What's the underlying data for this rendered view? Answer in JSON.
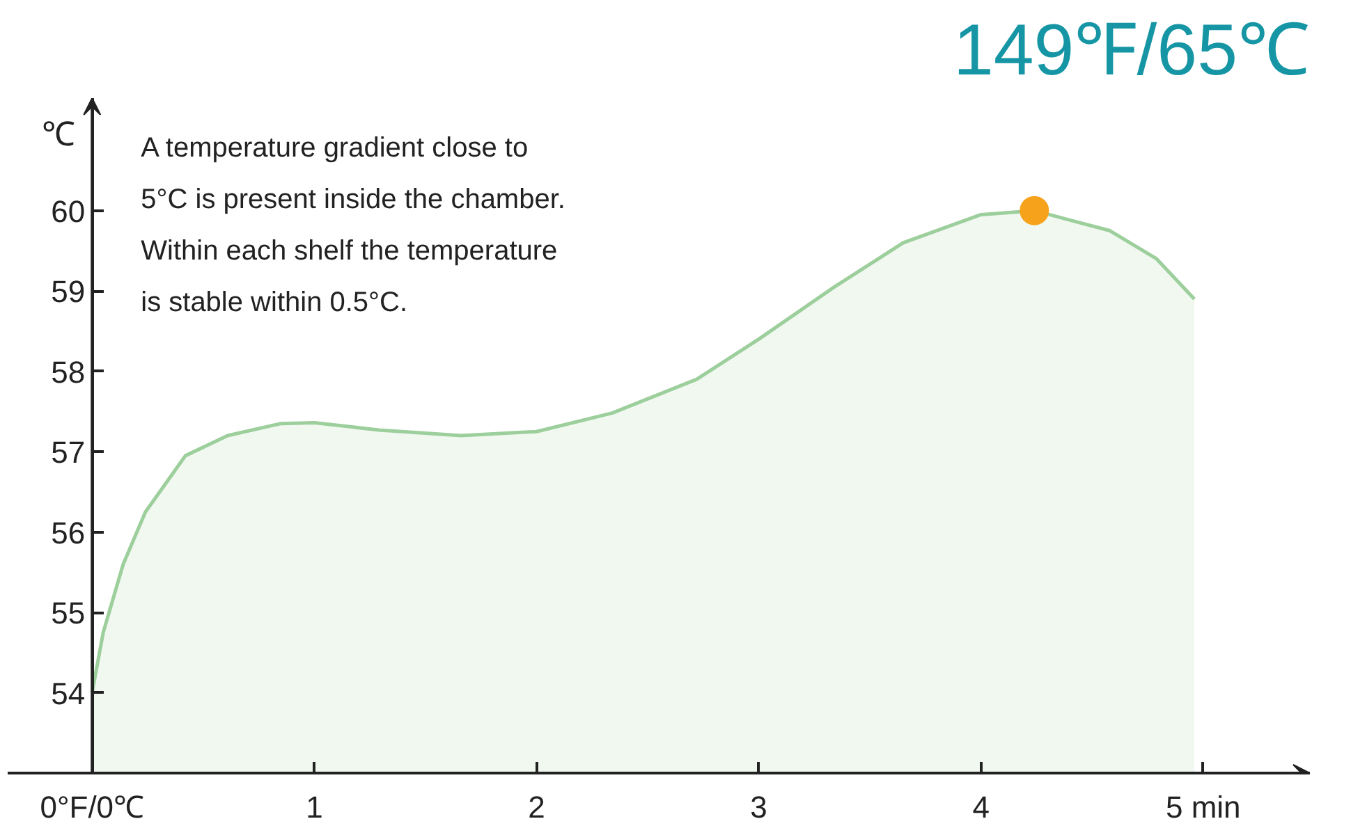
{
  "chart_data": {
    "type": "area",
    "title": "149℉/65℃",
    "ylabel": "℃",
    "annotations": [
      "A temperature gradient close to\n5°C is present inside the chamber.\nWithin each shelf the temperature\nis stable within 0.5°C."
    ],
    "xlim": [
      -0.38,
      5.48
    ],
    "ylim": [
      53.0,
      61.4
    ],
    "xticks": [
      {
        "value": 0,
        "label": "0°F/0℃"
      },
      1,
      2,
      3,
      4,
      {
        "value": 5,
        "label": "5 min"
      }
    ],
    "yticks": [
      54,
      55,
      56,
      57,
      58,
      59,
      60
    ],
    "grid": false,
    "series": [
      {
        "color": "#9ccf9c",
        "x": [
          0,
          0.05,
          0.14,
          0.24,
          0.42,
          0.61,
          0.85,
          1.0,
          1.29,
          1.66,
          2.0,
          2.34,
          2.72,
          3.0,
          3.34,
          3.65,
          4.0,
          4.24,
          4.58,
          4.79,
          4.96
        ],
        "values": [
          54.0,
          54.75,
          55.6,
          56.25,
          56.95,
          57.2,
          57.35,
          57.36,
          57.27,
          57.2,
          57.25,
          57.48,
          57.9,
          58.4,
          59.05,
          59.6,
          59.95,
          60.0,
          59.75,
          59.4,
          58.9
        ]
      },
      {
        "type": "scatter",
        "color": "#f7a21b",
        "marker": "circle",
        "x": [
          4.24
        ],
        "values": [
          60.0
        ]
      }
    ]
  }
}
